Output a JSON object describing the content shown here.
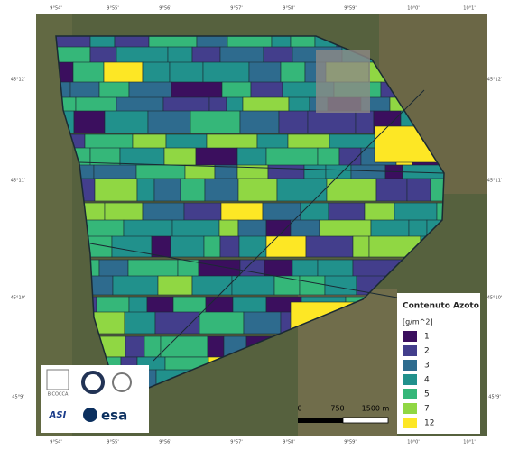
{
  "map": {
    "top_ticks": [
      "9°54'",
      "9°55'",
      "9°56'",
      "9°57'",
      "9°58'",
      "9°59'",
      "10°0'",
      "10°1'"
    ],
    "bottom_ticks": [
      "9°54'",
      "9°55'",
      "9°56'",
      "9°57'",
      "9°58'",
      "9°59'",
      "10°0'",
      "10°1'"
    ],
    "left_ticks": [
      "45°12'",
      "45°11'",
      "45°10'",
      "45°9'"
    ],
    "right_ticks": [
      "45°12'",
      "45°11'",
      "45°10'",
      "45°9'"
    ]
  },
  "legend": {
    "title": "Contenuto Azoto",
    "unit": "[g/m^2]",
    "items": [
      {
        "label": "1",
        "color": "#3b0f5e"
      },
      {
        "label": "2",
        "color": "#433e8c"
      },
      {
        "label": "3",
        "color": "#2e6b8e"
      },
      {
        "label": "4",
        "color": "#21918c"
      },
      {
        "label": "5",
        "color": "#35b779"
      },
      {
        "label": "7",
        "color": "#90d743"
      },
      {
        "label": "12",
        "color": "#fde725"
      }
    ]
  },
  "scale_bar": {
    "labels": [
      "0",
      "750",
      "1500 m"
    ]
  },
  "logos": {
    "bicocca": "BICOCCA",
    "asi": "ASI",
    "esa": "esa"
  }
}
